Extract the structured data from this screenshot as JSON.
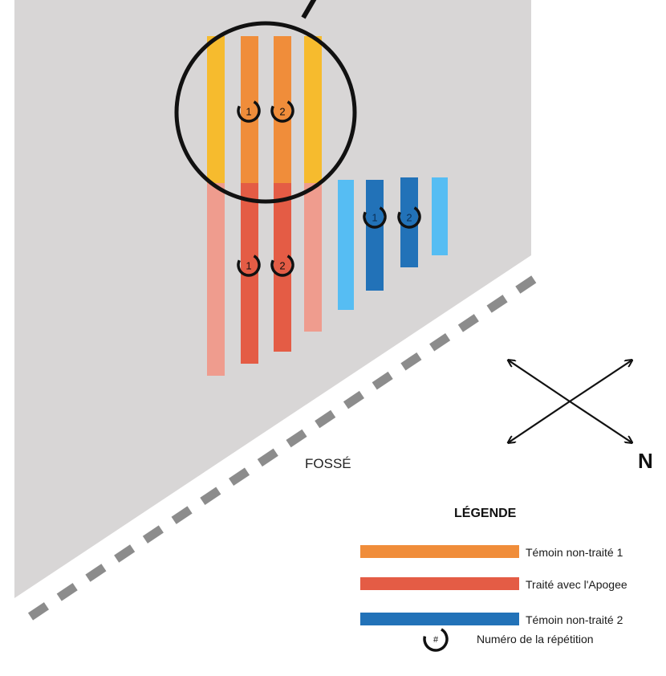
{
  "field": {
    "ditch_label": "FOSSÉ",
    "north_label": "N",
    "colors": {
      "field": "#d8d6d6",
      "ditch": "#8c8c8c",
      "control1": "#f08d3a",
      "control1_light": "#f6bb2e",
      "treated": "#e45c45",
      "treated_light": "#ef9c8e",
      "control2": "#2272b8",
      "control2_light": "#56bdf3"
    }
  },
  "plots": {
    "orange_reps": [
      "1",
      "2"
    ],
    "red_reps": [
      "1",
      "2"
    ],
    "blue_reps": [
      "1",
      "2"
    ]
  },
  "legend": {
    "title": "LÉGENDE",
    "items": [
      {
        "label": "Témoin non-traité 1",
        "color": "#f08d3a"
      },
      {
        "label": "Traité avec l'Apogee",
        "color": "#e45c45"
      },
      {
        "label": "Témoin non-traité 2",
        "color": "#2272b8"
      }
    ],
    "rep_symbol_text": "#",
    "rep_label": "Numéro de la répétition"
  }
}
